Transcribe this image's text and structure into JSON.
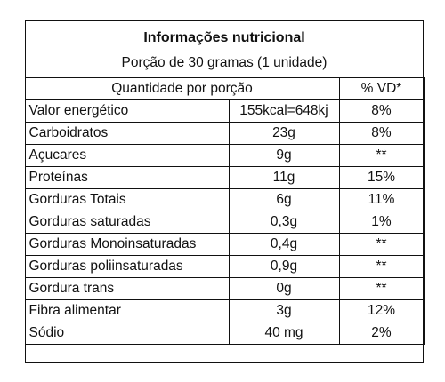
{
  "title": "Informações nutricional",
  "subtitle": "Porção de 30 gramas (1 unidade)",
  "header": {
    "quantity": "Quantidade por porção",
    "dv": "% VD*"
  },
  "rows": [
    {
      "name": "Valor energético",
      "amount": "155kcal=648kj",
      "dv": "8%"
    },
    {
      "name": "Carboidratos",
      "amount": "23g",
      "dv": "8%"
    },
    {
      "name": "Açucares",
      "amount": "9g",
      "dv": "**"
    },
    {
      "name": "Proteínas",
      "amount": "11g",
      "dv": "15%"
    },
    {
      "name": "Gorduras Totais",
      "amount": "6g",
      "dv": "11%"
    },
    {
      "name": "Gorduras saturadas",
      "amount": "0,3g",
      "dv": "1%"
    },
    {
      "name": "Gorduras Monoinsaturadas",
      "amount": "0,4g",
      "dv": "**"
    },
    {
      "name": "Gorduras poliinsaturadas",
      "amount": "0,9g",
      "dv": "**"
    },
    {
      "name": "Gordura trans",
      "amount": "0g",
      "dv": "**"
    },
    {
      "name": "Fibra alimentar",
      "amount": "3g",
      "dv": "12%"
    },
    {
      "name": "Sódio",
      "amount": "40 mg",
      "dv": "2%"
    }
  ]
}
